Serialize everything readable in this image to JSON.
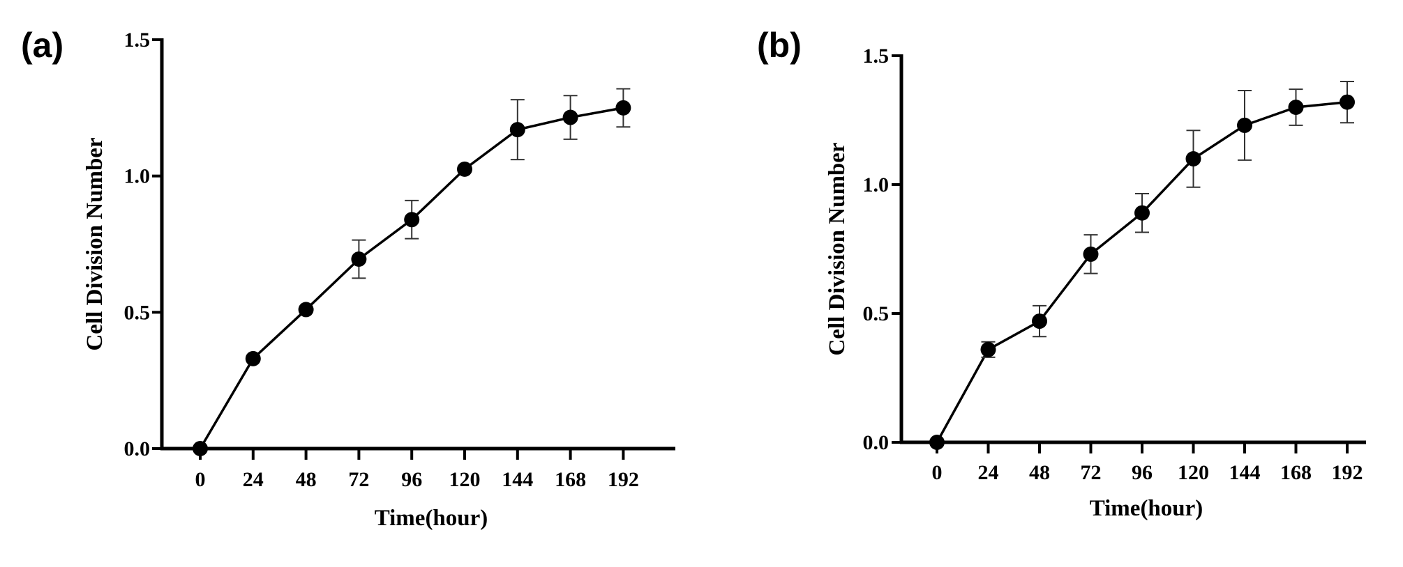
{
  "chart_data": [
    {
      "type": "line",
      "panel_label": "(a)",
      "title": "",
      "xlabel": "Time(hour)",
      "ylabel": "Cell Division Number",
      "x": [
        0,
        24,
        48,
        72,
        96,
        120,
        144,
        168,
        192
      ],
      "x_tick_labels": [
        "0",
        "24",
        "48",
        "72",
        "96",
        "120",
        "144",
        "168",
        "192"
      ],
      "y_tick_labels": [
        "0.0",
        "0.5",
        "1.0",
        "1.5"
      ],
      "y_ticks": [
        0,
        0.5,
        1.0,
        1.5
      ],
      "ylim": [
        0,
        1.5
      ],
      "grid": false,
      "series": [
        {
          "name": "Cell Division Number",
          "values": [
            0,
            0.33,
            0.51,
            0.695,
            0.84,
            1.025,
            1.17,
            1.215,
            1.25
          ],
          "error": [
            0,
            0,
            0,
            0.07,
            0.07,
            0,
            0.11,
            0.08,
            0.07
          ]
        }
      ]
    },
    {
      "type": "line",
      "panel_label": "(b)",
      "title": "",
      "xlabel": "Time(hour)",
      "ylabel": "Cell Division Number",
      "x": [
        0,
        24,
        48,
        72,
        96,
        120,
        144,
        168,
        192
      ],
      "x_tick_labels": [
        "0",
        "24",
        "48",
        "72",
        "96",
        "120",
        "144",
        "168",
        "192"
      ],
      "y_tick_labels": [
        "0.0",
        "0.5",
        "1.0",
        "1.5"
      ],
      "y_ticks": [
        0,
        0.5,
        1.0,
        1.5
      ],
      "ylim": [
        0,
        1.5
      ],
      "grid": false,
      "series": [
        {
          "name": "Cell Division Number",
          "values": [
            0,
            0.36,
            0.47,
            0.73,
            0.89,
            1.1,
            1.23,
            1.3,
            1.32
          ],
          "error": [
            0,
            0.03,
            0.06,
            0.075,
            0.075,
            0.11,
            0.135,
            0.07,
            0.08
          ]
        }
      ]
    }
  ]
}
